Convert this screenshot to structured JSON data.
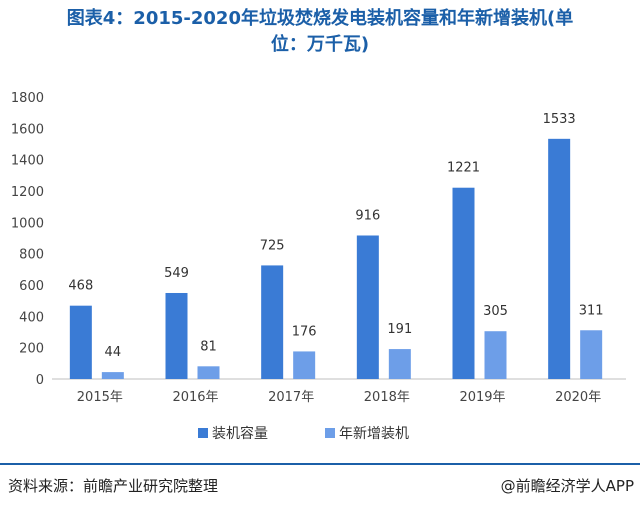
{
  "title_line1": "图表4：2015-2020年垃圾焚烧发电装机容量和年新增装机(单",
  "title_line2": "位：万千瓦)",
  "footer": {
    "source": "资料来源：前瞻产业研究院整理",
    "brand": "@前瞻经济学人APP"
  },
  "colors": {
    "series1": "#3a7bd5",
    "series2": "#6d9ee8",
    "rule": "#1b5fa8",
    "title": "#1b5fa8"
  },
  "chart_data": {
    "type": "bar",
    "categories": [
      "2015年",
      "2016年",
      "2017年",
      "2018年",
      "2019年",
      "2020年"
    ],
    "series": [
      {
        "name": "装机容量",
        "values": [
          468,
          549,
          725,
          916,
          1221,
          1533
        ]
      },
      {
        "name": "年新增装机",
        "values": [
          44,
          81,
          176,
          191,
          305,
          311
        ]
      }
    ],
    "ylim": [
      0,
      1800
    ],
    "yticks": [
      0,
      200,
      400,
      600,
      800,
      1000,
      1200,
      1400,
      1600,
      1800
    ],
    "legend_position": "bottom",
    "grid": false
  }
}
